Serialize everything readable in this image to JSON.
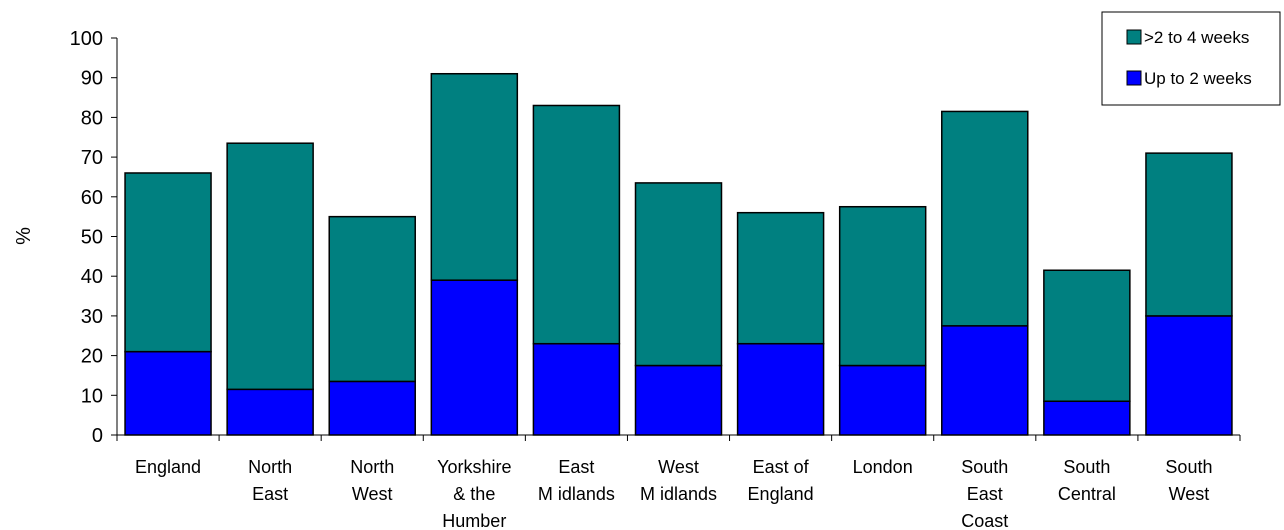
{
  "chart_data": {
    "type": "bar",
    "stacked": true,
    "categories": [
      [
        "England"
      ],
      [
        "North",
        "East"
      ],
      [
        "North",
        "West"
      ],
      [
        "Yorkshire",
        "& the",
        "Humber"
      ],
      [
        "East",
        "M idlands"
      ],
      [
        "West",
        "M idlands"
      ],
      [
        "East of",
        "England"
      ],
      [
        "London"
      ],
      [
        "South",
        "East",
        "Coast"
      ],
      [
        "South",
        "Central"
      ],
      [
        "South",
        "West"
      ]
    ],
    "series": [
      {
        "name": "Up to 2 weeks",
        "color": "#0000ff",
        "values": [
          21,
          11.5,
          13.5,
          39,
          23,
          17.5,
          23,
          17.5,
          27.5,
          8.5,
          30
        ]
      },
      {
        "name": ">2 to 4 weeks",
        "color": "#008080",
        "values": [
          45,
          62,
          41.5,
          52,
          60,
          46,
          33,
          40,
          54,
          33,
          41
        ]
      }
    ],
    "ylabel": "%",
    "ylim": [
      0,
      100
    ],
    "yticks": [
      "0",
      "10",
      "20",
      "30",
      "40",
      "50",
      "60",
      "70",
      "80",
      "90",
      "100"
    ],
    "legend_position": "top-right",
    "legend_order": [
      ">2 to 4 weeks",
      "Up to 2 weeks"
    ],
    "grid": false
  }
}
